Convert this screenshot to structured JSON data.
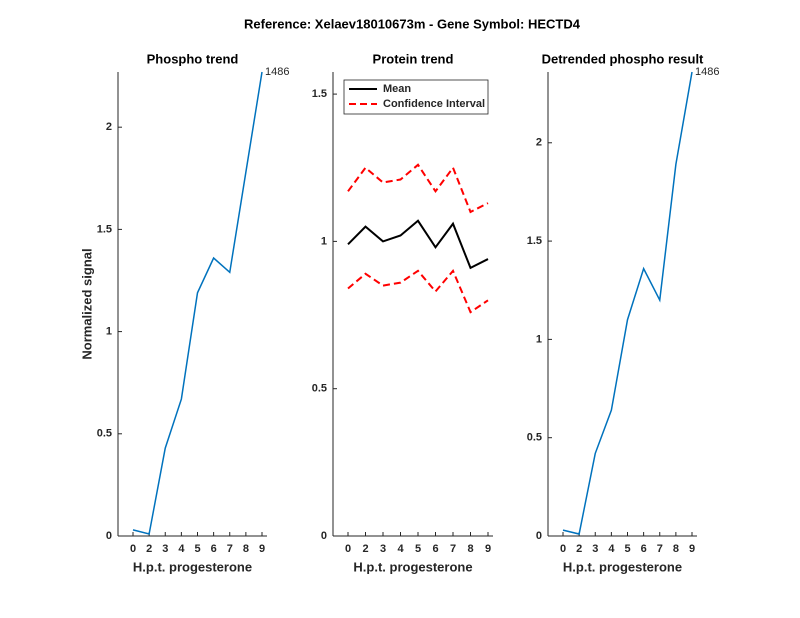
{
  "title": "Reference:  Xelaev18010673m - Gene Symbol:  HECTD4",
  "chart_data": [
    {
      "type": "line",
      "title": "Phospho trend",
      "xlabel": "H.p.t. progesterone",
      "ylabel": "Normalized signal",
      "categories": [
        "0",
        "2",
        "3",
        "4",
        "5",
        "6",
        "7",
        "8",
        "9"
      ],
      "ylim": [
        0,
        2.27
      ],
      "yticks": [
        0,
        0.5,
        1,
        1.5,
        2
      ],
      "series": [
        {
          "color": "#0072bd",
          "values": [
            0.03,
            0.01,
            0.43,
            0.67,
            1.19,
            1.36,
            1.29,
            1.78,
            2.27
          ]
        }
      ],
      "annotation": "1486"
    },
    {
      "type": "line",
      "title": "Protein trend",
      "xlabel": "H.p.t. progesterone",
      "categories": [
        "0",
        "2",
        "3",
        "4",
        "5",
        "6",
        "7",
        "8",
        "9"
      ],
      "ylim": [
        0,
        1.575
      ],
      "yticks": [
        0,
        0.5,
        1,
        1.5
      ],
      "legend": "upper left",
      "series": [
        {
          "name": "Mean",
          "color": "#000000",
          "values": [
            0.99,
            1.05,
            1.0,
            1.02,
            1.07,
            0.98,
            1.06,
            0.91,
            0.94
          ]
        },
        {
          "name": "Confidence Interval",
          "color": "#ff0000",
          "dashed": true,
          "values": [
            1.17,
            1.25,
            1.2,
            1.21,
            1.26,
            1.17,
            1.25,
            1.1,
            1.13
          ]
        },
        {
          "color": "#ff0000",
          "dashed": true,
          "values": [
            0.84,
            0.89,
            0.85,
            0.86,
            0.9,
            0.83,
            0.9,
            0.76,
            0.8
          ]
        }
      ]
    },
    {
      "type": "line",
      "title": "Detrended phospho result",
      "xlabel": "H.p.t. progesterone",
      "categories": [
        "0",
        "2",
        "3",
        "4",
        "5",
        "6",
        "7",
        "8",
        "9"
      ],
      "ylim": [
        0,
        2.36
      ],
      "yticks": [
        0,
        0.5,
        1,
        1.5,
        2
      ],
      "series": [
        {
          "color": "#0072bd",
          "values": [
            0.03,
            0.01,
            0.42,
            0.64,
            1.1,
            1.36,
            1.2,
            1.89,
            2.36
          ]
        }
      ],
      "annotation": "1486"
    }
  ]
}
